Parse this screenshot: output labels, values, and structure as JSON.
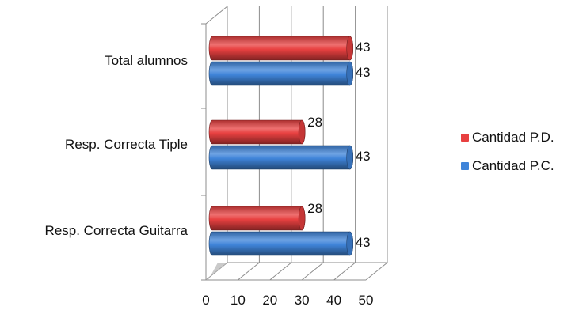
{
  "chart_data": {
    "type": "bar",
    "orientation": "horizontal",
    "style": "3d-cylinder",
    "title": "",
    "xlabel": "",
    "ylabel": "",
    "categories": [
      "Total alumnos",
      "Resp. Correcta Tiple",
      "Resp. Correcta Guitarra"
    ],
    "series": [
      {
        "name": "Cantidad P.D.",
        "color": "#e84040",
        "values": [
          43,
          28,
          28
        ]
      },
      {
        "name": "Cantidad P.C.",
        "color": "#3f84d9",
        "values": [
          43,
          43,
          43
        ]
      }
    ],
    "xlim": [
      0,
      50
    ],
    "ticks": [
      "0",
      "10",
      "20",
      "30",
      "40",
      "50"
    ],
    "grid": true,
    "legend_position": "right"
  }
}
